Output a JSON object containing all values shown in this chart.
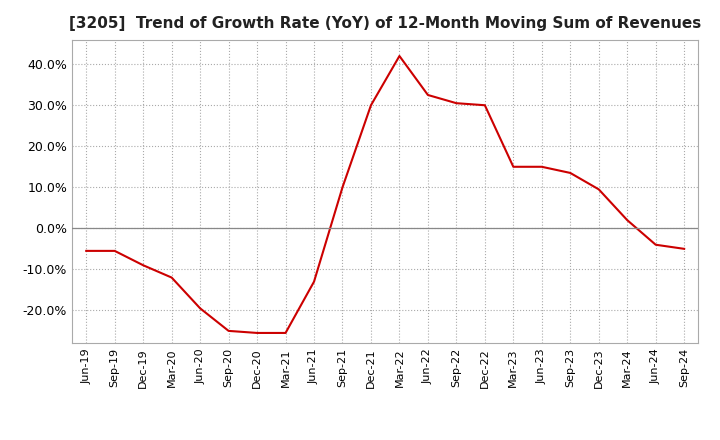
{
  "title": "[3205]  Trend of Growth Rate (YoY) of 12-Month Moving Sum of Revenues",
  "title_fontsize": 11,
  "line_color": "#cc0000",
  "background_color": "#ffffff",
  "grid_color": "#aaaaaa",
  "zero_line_color": "#888888",
  "ylim": [
    -28,
    46
  ],
  "yticks": [
    -20,
    -10,
    0,
    10,
    20,
    30,
    40
  ],
  "x_labels": [
    "Jun-19",
    "Sep-19",
    "Dec-19",
    "Mar-20",
    "Jun-20",
    "Sep-20",
    "Dec-20",
    "Mar-21",
    "Jun-21",
    "Sep-21",
    "Dec-21",
    "Mar-22",
    "Jun-22",
    "Sep-22",
    "Dec-22",
    "Mar-23",
    "Jun-23",
    "Sep-23",
    "Dec-23",
    "Mar-24",
    "Jun-24",
    "Sep-24"
  ],
  "values": [
    -5.5,
    -5.5,
    -9.0,
    -12.0,
    -19.5,
    -25.0,
    -25.5,
    -25.5,
    -13.0,
    10.0,
    30.0,
    42.0,
    32.5,
    30.5,
    30.0,
    15.0,
    15.0,
    13.5,
    9.5,
    2.0,
    -4.0,
    -5.0
  ]
}
